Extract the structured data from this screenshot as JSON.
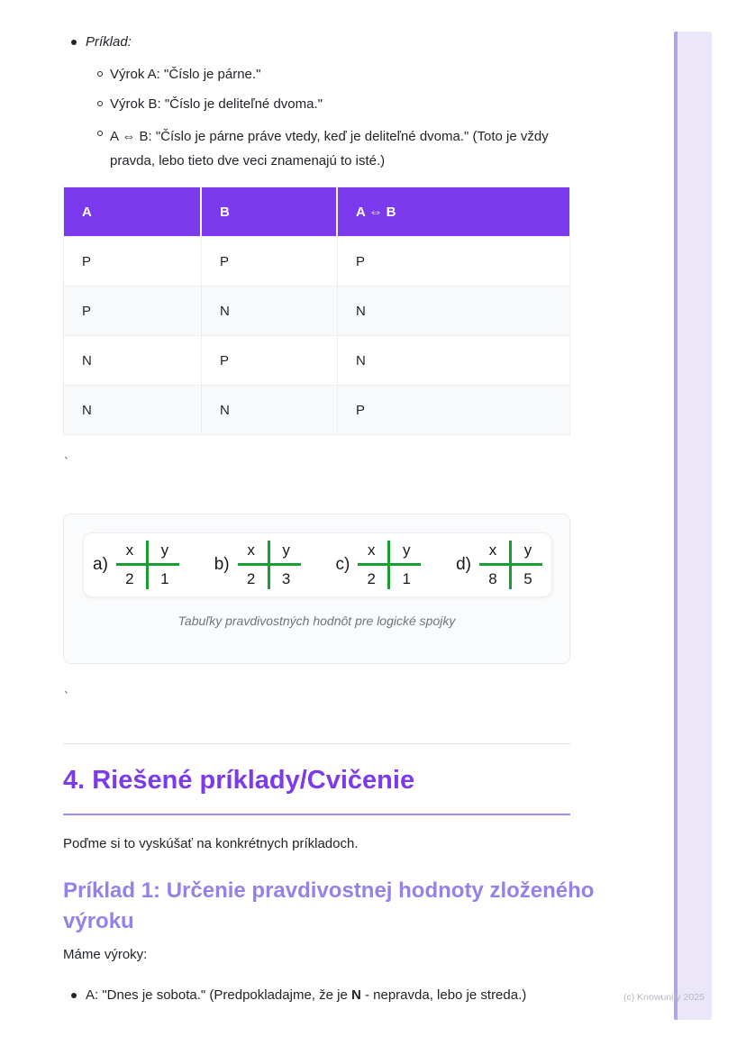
{
  "example_list": {
    "title": "Príklad:",
    "items": [
      "Výrok A: \"Číslo je párne.\"",
      "Výrok B: \"Číslo je deliteľné dvoma.\"",
      "A ⇔ B: \"Číslo je párne práve vtedy, keď je deliteľné dvoma.\" (Toto je vždy pravda, lebo tieto dve veci znamenajú to isté.)"
    ]
  },
  "truth_table": {
    "headers": [
      "A",
      "B",
      "A ⇔ B"
    ],
    "rows": [
      [
        "P",
        "P",
        "P"
      ],
      [
        "P",
        "N",
        "N"
      ],
      [
        "N",
        "P",
        "N"
      ],
      [
        "N",
        "N",
        "P"
      ]
    ]
  },
  "stray_marks": {
    "tick1": "`",
    "tick2": "`"
  },
  "figure": {
    "caption": "Tabuľky pravdivostných hodnôt pre logické spojky",
    "mini_tables": [
      {
        "label": "a)",
        "col1": "x",
        "col2": "y",
        "val1": "2",
        "val2": "1"
      },
      {
        "label": "b)",
        "col1": "x",
        "col2": "y",
        "val1": "2",
        "val2": "3"
      },
      {
        "label": "c)",
        "col1": "x",
        "col2": "y",
        "val1": "2",
        "val2": "1"
      },
      {
        "label": "d)",
        "col1": "x",
        "col2": "y",
        "val1": "8",
        "val2": "5"
      }
    ]
  },
  "section": {
    "heading": "4. Riešené príklady/Cvičenie",
    "intro": "Poďme si to vyskúšať na konkrétnych príkladoch.",
    "subheading": "Príklad 1: Určenie pravdivostnej hodnoty zloženého výroku",
    "lead": "Máme výroky:",
    "bullet_a": {
      "before": "A: \"Dnes je sobota.\" (Predpokladajme, že je ",
      "bold": "N",
      "after": " - nepravda, lebo je streda.)"
    }
  },
  "footer": {
    "copyright": "(c) Knowunity 2025"
  },
  "colors": {
    "accent_purple": "#7c3aed",
    "subheading_purple": "#9183ea",
    "underline_purple": "#a78bfa",
    "figure_line_green": "#1a9e33",
    "sidebar_fill": "#ebe7f8",
    "sidebar_strip": "#b3a4e4"
  }
}
